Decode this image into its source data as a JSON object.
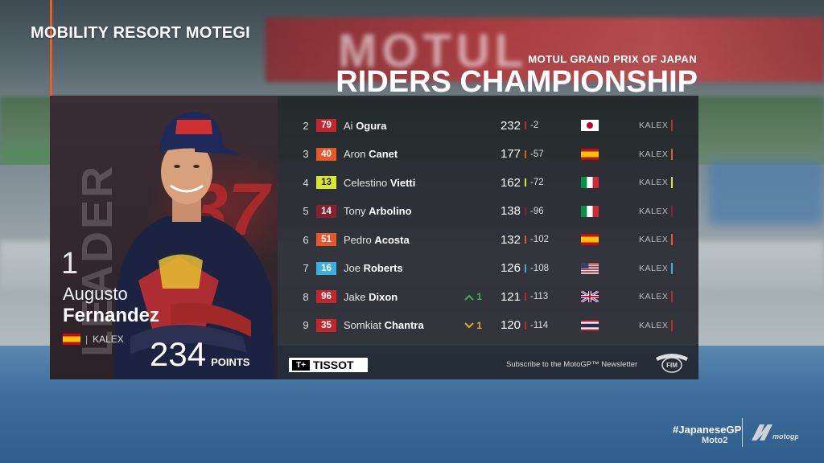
{
  "venue": "MOBILITY RESORT MOTEGI",
  "heading": {
    "gp_name": "MOTUL GRAND PRIX OF JAPAN",
    "title": "RIDERS CHAMPIONSHIP"
  },
  "background": {
    "banner_text": "MOTUL"
  },
  "leader": {
    "label": "LEADER",
    "position": "1",
    "bike_number": "37",
    "first_name": "Augusto",
    "last_name": "Fernandez",
    "country_flag": "spain-flag-icon",
    "team": "KALEX",
    "points": "234",
    "points_label": "POINTS"
  },
  "standings": [
    {
      "pos": "2",
      "number": "79",
      "first": "Ai",
      "last": "Ogura",
      "move": "",
      "points": "232",
      "gap": "-2",
      "flag": "japan-flag-icon",
      "team": "KALEX",
      "color": "#c4262e"
    },
    {
      "pos": "3",
      "number": "40",
      "first": "Aron",
      "last": "Canet",
      "move": "",
      "points": "177",
      "gap": "-57",
      "flag": "spain-flag-icon",
      "team": "KALEX",
      "color": "#e8572a"
    },
    {
      "pos": "4",
      "number": "13",
      "first": "Celestino",
      "last": "Vietti",
      "move": "",
      "points": "162",
      "gap": "-72",
      "flag": "italy-flag-icon",
      "team": "KALEX",
      "color": "#d6e82a"
    },
    {
      "pos": "5",
      "number": "14",
      "first": "Tony",
      "last": "Arbolino",
      "move": "",
      "points": "138",
      "gap": "-96",
      "flag": "italy-flag-icon",
      "team": "KALEX",
      "color": "#8a1f2e"
    },
    {
      "pos": "6",
      "number": "51",
      "first": "Pedro",
      "last": "Acosta",
      "move": "",
      "points": "132",
      "gap": "-102",
      "flag": "spain-flag-icon",
      "team": "KALEX",
      "color": "#e8572a"
    },
    {
      "pos": "7",
      "number": "16",
      "first": "Joe",
      "last": "Roberts",
      "move": "",
      "points": "126",
      "gap": "-108",
      "flag": "usa-flag-icon",
      "team": "KALEX",
      "color": "#3ab0e0"
    },
    {
      "pos": "8",
      "number": "96",
      "first": "Jake",
      "last": "Dixon",
      "move": "1",
      "move_dir": "up",
      "points": "121",
      "gap": "-113",
      "flag": "uk-flag-icon",
      "team": "KALEX",
      "color": "#c4262e"
    },
    {
      "pos": "9",
      "number": "35",
      "first": "Somkiat",
      "last": "Chantra",
      "move": "1",
      "move_dir": "down",
      "points": "120",
      "gap": "-114",
      "flag": "thailand-flag-icon",
      "team": "KALEX",
      "color": "#c4262e"
    }
  ],
  "colors": {
    "up": "#3fb44a",
    "down": "#e0b020",
    "accent": "#f05a28"
  },
  "footer": {
    "sponsor": "TISSOT",
    "sponsor_mark": "T+",
    "subscribe": "Subscribe to the MotoGP™ Newsletter",
    "fim_logo": "fim-logo-icon"
  },
  "brand": {
    "hashtag": "#JapaneseGP",
    "category": "Moto2",
    "logo": "motogp-logo-icon"
  }
}
